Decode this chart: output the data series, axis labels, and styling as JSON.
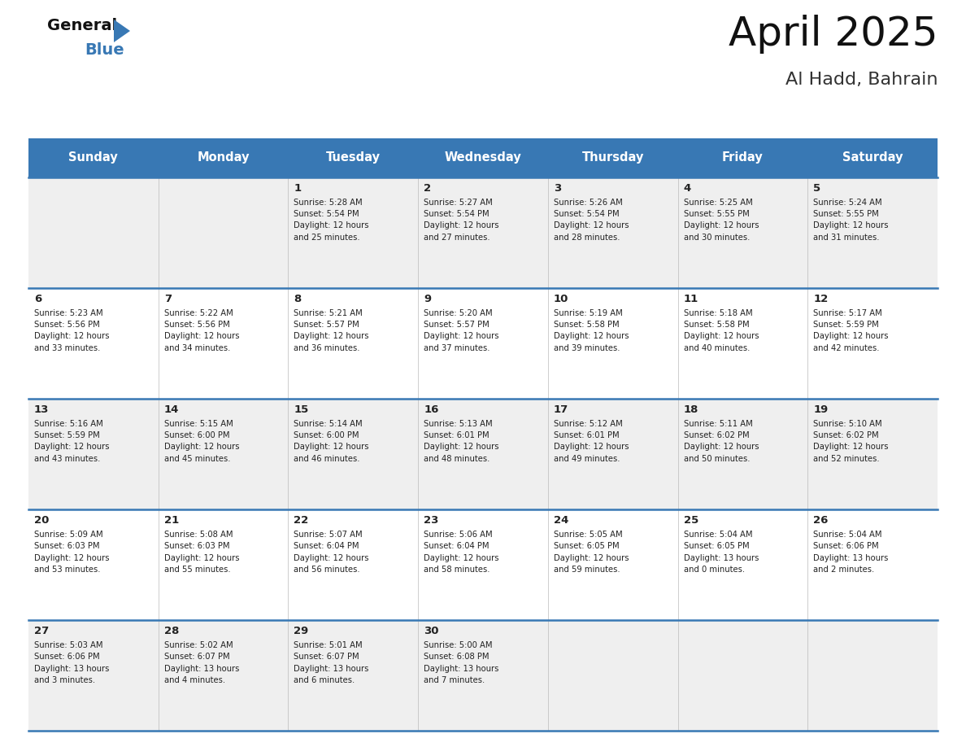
{
  "title": "April 2025",
  "subtitle": "Al Hadd, Bahrain",
  "header_bg_color": "#3878b4",
  "header_text_color": "#ffffff",
  "cell_bg_color_odd": "#efefef",
  "cell_bg_color_even": "#ffffff",
  "border_color": "#3878b4",
  "text_color": "#222222",
  "logo_general_color": "#111111",
  "logo_blue_color": "#3878b4",
  "logo_triangle_color": "#3878b4",
  "days_of_week": [
    "Sunday",
    "Monday",
    "Tuesday",
    "Wednesday",
    "Thursday",
    "Friday",
    "Saturday"
  ],
  "weeks": [
    [
      {
        "day": "",
        "lines": ""
      },
      {
        "day": "",
        "lines": ""
      },
      {
        "day": "1",
        "lines": "Sunrise: 5:28 AM\nSunset: 5:54 PM\nDaylight: 12 hours\nand 25 minutes."
      },
      {
        "day": "2",
        "lines": "Sunrise: 5:27 AM\nSunset: 5:54 PM\nDaylight: 12 hours\nand 27 minutes."
      },
      {
        "day": "3",
        "lines": "Sunrise: 5:26 AM\nSunset: 5:54 PM\nDaylight: 12 hours\nand 28 minutes."
      },
      {
        "day": "4",
        "lines": "Sunrise: 5:25 AM\nSunset: 5:55 PM\nDaylight: 12 hours\nand 30 minutes."
      },
      {
        "day": "5",
        "lines": "Sunrise: 5:24 AM\nSunset: 5:55 PM\nDaylight: 12 hours\nand 31 minutes."
      }
    ],
    [
      {
        "day": "6",
        "lines": "Sunrise: 5:23 AM\nSunset: 5:56 PM\nDaylight: 12 hours\nand 33 minutes."
      },
      {
        "day": "7",
        "lines": "Sunrise: 5:22 AM\nSunset: 5:56 PM\nDaylight: 12 hours\nand 34 minutes."
      },
      {
        "day": "8",
        "lines": "Sunrise: 5:21 AM\nSunset: 5:57 PM\nDaylight: 12 hours\nand 36 minutes."
      },
      {
        "day": "9",
        "lines": "Sunrise: 5:20 AM\nSunset: 5:57 PM\nDaylight: 12 hours\nand 37 minutes."
      },
      {
        "day": "10",
        "lines": "Sunrise: 5:19 AM\nSunset: 5:58 PM\nDaylight: 12 hours\nand 39 minutes."
      },
      {
        "day": "11",
        "lines": "Sunrise: 5:18 AM\nSunset: 5:58 PM\nDaylight: 12 hours\nand 40 minutes."
      },
      {
        "day": "12",
        "lines": "Sunrise: 5:17 AM\nSunset: 5:59 PM\nDaylight: 12 hours\nand 42 minutes."
      }
    ],
    [
      {
        "day": "13",
        "lines": "Sunrise: 5:16 AM\nSunset: 5:59 PM\nDaylight: 12 hours\nand 43 minutes."
      },
      {
        "day": "14",
        "lines": "Sunrise: 5:15 AM\nSunset: 6:00 PM\nDaylight: 12 hours\nand 45 minutes."
      },
      {
        "day": "15",
        "lines": "Sunrise: 5:14 AM\nSunset: 6:00 PM\nDaylight: 12 hours\nand 46 minutes."
      },
      {
        "day": "16",
        "lines": "Sunrise: 5:13 AM\nSunset: 6:01 PM\nDaylight: 12 hours\nand 48 minutes."
      },
      {
        "day": "17",
        "lines": "Sunrise: 5:12 AM\nSunset: 6:01 PM\nDaylight: 12 hours\nand 49 minutes."
      },
      {
        "day": "18",
        "lines": "Sunrise: 5:11 AM\nSunset: 6:02 PM\nDaylight: 12 hours\nand 50 minutes."
      },
      {
        "day": "19",
        "lines": "Sunrise: 5:10 AM\nSunset: 6:02 PM\nDaylight: 12 hours\nand 52 minutes."
      }
    ],
    [
      {
        "day": "20",
        "lines": "Sunrise: 5:09 AM\nSunset: 6:03 PM\nDaylight: 12 hours\nand 53 minutes."
      },
      {
        "day": "21",
        "lines": "Sunrise: 5:08 AM\nSunset: 6:03 PM\nDaylight: 12 hours\nand 55 minutes."
      },
      {
        "day": "22",
        "lines": "Sunrise: 5:07 AM\nSunset: 6:04 PM\nDaylight: 12 hours\nand 56 minutes."
      },
      {
        "day": "23",
        "lines": "Sunrise: 5:06 AM\nSunset: 6:04 PM\nDaylight: 12 hours\nand 58 minutes."
      },
      {
        "day": "24",
        "lines": "Sunrise: 5:05 AM\nSunset: 6:05 PM\nDaylight: 12 hours\nand 59 minutes."
      },
      {
        "day": "25",
        "lines": "Sunrise: 5:04 AM\nSunset: 6:05 PM\nDaylight: 13 hours\nand 0 minutes."
      },
      {
        "day": "26",
        "lines": "Sunrise: 5:04 AM\nSunset: 6:06 PM\nDaylight: 13 hours\nand 2 minutes."
      }
    ],
    [
      {
        "day": "27",
        "lines": "Sunrise: 5:03 AM\nSunset: 6:06 PM\nDaylight: 13 hours\nand 3 minutes."
      },
      {
        "day": "28",
        "lines": "Sunrise: 5:02 AM\nSunset: 6:07 PM\nDaylight: 13 hours\nand 4 minutes."
      },
      {
        "day": "29",
        "lines": "Sunrise: 5:01 AM\nSunset: 6:07 PM\nDaylight: 13 hours\nand 6 minutes."
      },
      {
        "day": "30",
        "lines": "Sunrise: 5:00 AM\nSunset: 6:08 PM\nDaylight: 13 hours\nand 7 minutes."
      },
      {
        "day": "",
        "lines": ""
      },
      {
        "day": "",
        "lines": ""
      },
      {
        "day": "",
        "lines": ""
      }
    ]
  ]
}
